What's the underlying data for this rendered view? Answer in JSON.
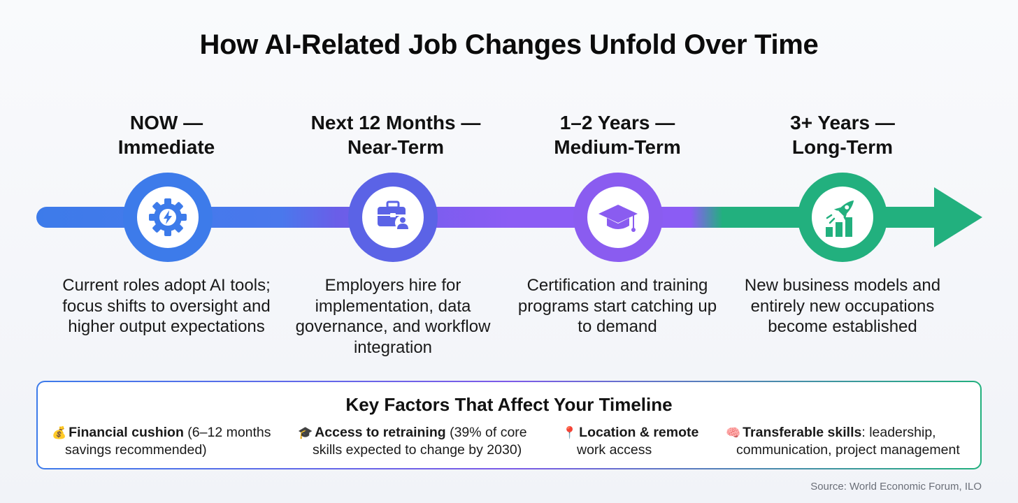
{
  "title": "How AI-Related Job Changes Unfold Over Time",
  "stages": [
    {
      "heading_line1": "NOW —",
      "heading_line2": "Immediate",
      "icon": "gear-lightning-icon",
      "color": "#3d7bea",
      "description": "Current roles adopt AI tools; focus shifts to oversight and higher output expectations"
    },
    {
      "heading_line1": "Next 12 Months —",
      "heading_line2": "Near-Term",
      "icon": "briefcase-person-icon",
      "color": "#5b63e6",
      "description": "Employers hire for implementation, data governance, and workflow integration"
    },
    {
      "heading_line1": "1–2 Years —",
      "heading_line2": "Medium-Term",
      "icon": "graduation-cap-icon",
      "color": "#8a5cf0",
      "description": "Certification and training programs start catching up to demand"
    },
    {
      "heading_line1": "3+ Years —",
      "heading_line2": "Long-Term",
      "icon": "rocket-growth-icon",
      "color": "#22b07e",
      "description": "New business models and entirely new occupations become established"
    }
  ],
  "factors": {
    "title": "Key Factors That Affect Your Timeline",
    "items": [
      {
        "emoji": "💰",
        "label": "Financial cushion",
        "line1_rest": " (6–12 months",
        "line2": "savings recommended)"
      },
      {
        "emoji": "🎓",
        "label": "Access to retraining",
        "line1_rest": " (39% of core",
        "line2": "skills expected to change by 2030)"
      },
      {
        "emoji": "📍",
        "label": "Location & remote",
        "line1_rest": "",
        "line2": "work access"
      },
      {
        "emoji": "🧠",
        "label": "Transferable skills",
        "line1_rest": ": leadership,",
        "line2": "communication, project management"
      }
    ]
  },
  "source": "Source: World Economic Forum, ILO"
}
